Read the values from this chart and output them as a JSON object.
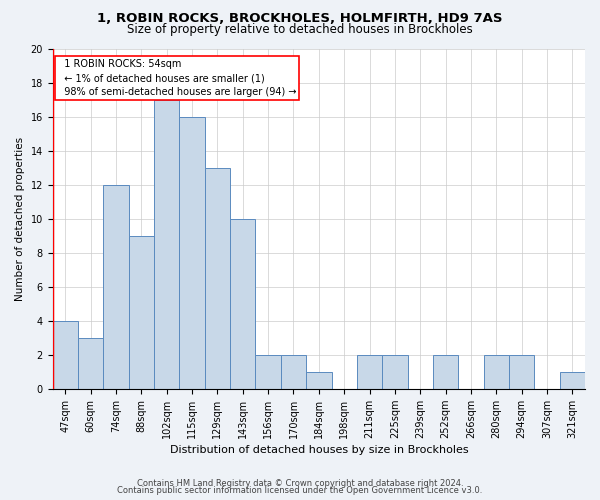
{
  "title1": "1, ROBIN ROCKS, BROCKHOLES, HOLMFIRTH, HD9 7AS",
  "title2": "Size of property relative to detached houses in Brockholes",
  "xlabel": "Distribution of detached houses by size in Brockholes",
  "ylabel": "Number of detached properties",
  "categories": [
    "47sqm",
    "60sqm",
    "74sqm",
    "88sqm",
    "102sqm",
    "115sqm",
    "129sqm",
    "143sqm",
    "156sqm",
    "170sqm",
    "184sqm",
    "198sqm",
    "211sqm",
    "225sqm",
    "239sqm",
    "252sqm",
    "266sqm",
    "280sqm",
    "294sqm",
    "307sqm",
    "321sqm"
  ],
  "values": [
    4,
    3,
    12,
    9,
    17,
    16,
    13,
    10,
    2,
    2,
    1,
    0,
    2,
    2,
    0,
    2,
    0,
    2,
    2,
    0,
    1
  ],
  "bar_color": "#c8d8e8",
  "bar_edge_color": "#5a8abf",
  "bar_edge_width": 0.7,
  "annotation_text": "  1 ROBIN ROCKS: 54sqm\n  ← 1% of detached houses are smaller (1)\n  98% of semi-detached houses are larger (94) →",
  "annotation_box_color": "white",
  "annotation_box_edge_color": "red",
  "vline_color": "red",
  "ylim": [
    0,
    20
  ],
  "yticks": [
    0,
    2,
    4,
    6,
    8,
    10,
    12,
    14,
    16,
    18,
    20
  ],
  "footer1": "Contains HM Land Registry data © Crown copyright and database right 2024.",
  "footer2": "Contains public sector information licensed under the Open Government Licence v3.0.",
  "bg_color": "#eef2f7",
  "plot_bg_color": "#ffffff",
  "title1_fontsize": 9.5,
  "title2_fontsize": 8.5,
  "xlabel_fontsize": 8.0,
  "ylabel_fontsize": 7.5,
  "tick_fontsize": 7.0,
  "footer_fontsize": 6.0,
  "annot_fontsize": 7.0
}
